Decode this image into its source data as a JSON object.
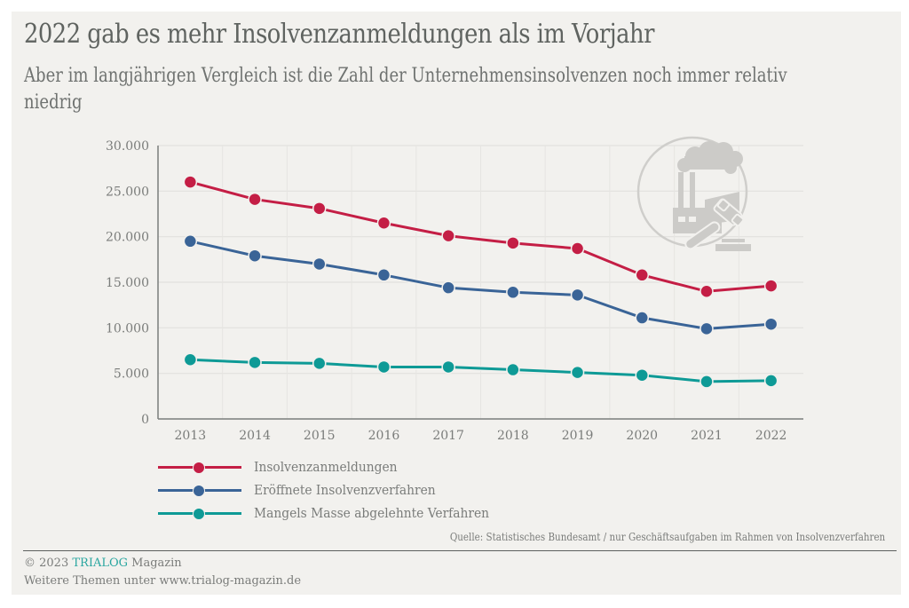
{
  "header": {
    "title": "2022 gab es mehr Insolvenzanmeldungen als im Vorjahr",
    "subtitle": "Aber im langjährigen Vergleich ist die Zahl der Unternehmensinsolvenzen noch immer relativ niedrig"
  },
  "chart_data": {
    "type": "line",
    "title": "2022 gab es mehr Insolvenzanmeldungen als im Vorjahr",
    "subtitle": "Aber im langjährigen Vergleich ist die Zahl der Unternehmensinsolvenzen noch immer relativ niedrig",
    "xlabel": "",
    "ylabel": "",
    "x": [
      "2013",
      "2014",
      "2015",
      "2016",
      "2017",
      "2018",
      "2019",
      "2020",
      "2021",
      "2022"
    ],
    "ylim": [
      0,
      30000
    ],
    "yticks": [
      0,
      5000,
      10000,
      15000,
      20000,
      25000,
      30000
    ],
    "ytick_labels": [
      "0",
      "5.000",
      "10.000",
      "15.000",
      "20.000",
      "25.000",
      "30.000"
    ],
    "grid": true,
    "legend_position": "bottom-left",
    "series": [
      {
        "name": "Insolvenzanmeldungen",
        "color": "#c41e45",
        "values": [
          26000,
          24100,
          23100,
          21500,
          20100,
          19300,
          18700,
          15800,
          14000,
          14600
        ]
      },
      {
        "name": "Eröffnete Insolvenzverfahren",
        "color": "#3a6497",
        "values": [
          19500,
          17900,
          17000,
          15800,
          14400,
          13900,
          13600,
          11100,
          9900,
          10400
        ]
      },
      {
        "name": "Mangels Masse abgelehnte Verfahren",
        "color": "#0e9a96",
        "values": [
          6500,
          6200,
          6100,
          5700,
          5700,
          5400,
          5100,
          4800,
          4100,
          4200
        ]
      }
    ]
  },
  "icon": {
    "name": "factory-gavel-icon"
  },
  "source": "Quelle: Statistisches Bundesamt / nur Geschäftsaufgaben im Rahmen von Insolvenzverfahren",
  "footer": {
    "copyright_prefix": "© 2023 ",
    "brand": "TRIALOG",
    "copyright_suffix": " Magazin",
    "more": "Weitere Themen unter www.trialog-magazin.de",
    "brand_color": "#2aa6a0"
  }
}
